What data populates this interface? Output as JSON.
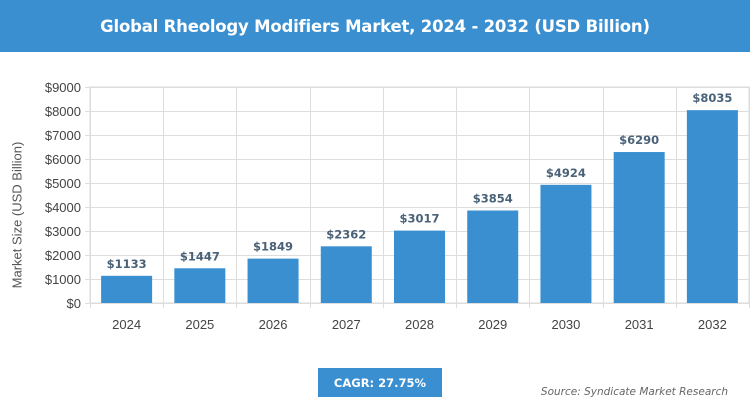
{
  "header": {
    "title": "Global Rheology Modifiers Market, 2024 - 2032 (USD Billion)"
  },
  "chart_data": {
    "type": "bar",
    "categories": [
      "2024",
      "2025",
      "2026",
      "2027",
      "2028",
      "2029",
      "2030",
      "2031",
      "2032"
    ],
    "values": [
      1133,
      1447,
      1849,
      2362,
      3017,
      3854,
      4924,
      6290,
      8035
    ],
    "data_labels": [
      "$1133",
      "$1447",
      "$1849",
      "$2362",
      "$3017",
      "$3854",
      "$4924",
      "$6290",
      "$8035"
    ],
    "ylabel": "Market Size (USD Billion)",
    "xlabel": "",
    "ylim": [
      0,
      9000
    ],
    "yticks": [
      0,
      1000,
      2000,
      3000,
      4000,
      5000,
      6000,
      7000,
      8000,
      9000
    ],
    "ytick_labels": [
      "$0",
      "$1000",
      "$2000",
      "$3000",
      "$4000",
      "$5000",
      "$6000",
      "$7000",
      "$8000",
      "$9000"
    ],
    "grid": true,
    "bar_color": "#3a8fd1",
    "label_color": "#4a6278"
  },
  "footer": {
    "cagr": "CAGR: 27.75%",
    "source": "Source: Syndicate Market Research"
  },
  "colors": {
    "accent": "#3a8fd1"
  }
}
